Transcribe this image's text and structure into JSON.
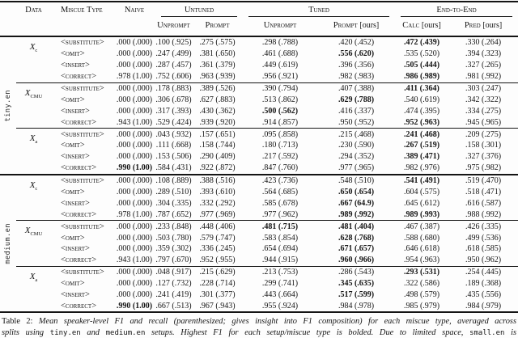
{
  "table": {
    "header": {
      "data": "Data",
      "miscue_type": "Miscue Type",
      "naive": "Naive",
      "col_groups": [
        {
          "label": "Untuned",
          "cols": [
            {
              "label": "Unprompt"
            },
            {
              "label": "Prompt",
              "suffix": ""
            }
          ]
        },
        {
          "label": "Tuned",
          "cols": [
            {
              "label": "Unprompt"
            },
            {
              "label": "Prompt",
              "suffix": "[ours]"
            }
          ]
        },
        {
          "label": "End-to-End",
          "cols": [
            {
              "label": "Calc",
              "suffix": "[ours]"
            },
            {
              "label": "Pred",
              "suffix": "[ours]"
            }
          ]
        }
      ]
    },
    "sections": [
      {
        "setup": "tiny.en",
        "groups": [
          {
            "data_label": {
              "base": "X",
              "sub": "c"
            },
            "rows": [
              {
                "miscue": "<SUBSTITUTE>",
                "cells": [
                  ".000 (.000)",
                  ".100 (.925)",
                  ".275 (.575)",
                  ".298 (.788)",
                  ".420 (.452)",
                  ".472 (.439)",
                  ".330 (.264)"
                ],
                "bold": [
                  5
                ]
              },
              {
                "miscue": "<OMIT>",
                "cells": [
                  ".000 (.000)",
                  ".247 (.499)",
                  ".381 (.650)",
                  ".461 (.688)",
                  ".556 (.620)",
                  ".535 (.520)",
                  ".394 (.323)"
                ],
                "bold": [
                  4
                ]
              },
              {
                "miscue": "<INSERT>",
                "cells": [
                  ".000 (.000)",
                  ".287 (.457)",
                  ".361 (.379)",
                  ".449 (.619)",
                  ".396 (.356)",
                  ".505 (.444)",
                  ".327 (.265)"
                ],
                "bold": [
                  5
                ]
              },
              {
                "miscue": "<CORRECT>",
                "cells": [
                  ".978 (1.00)",
                  ".752 (.606)",
                  ".963 (.939)",
                  ".956 (.921)",
                  ".982 (.983)",
                  ".986 (.989)",
                  ".981 (.992)"
                ],
                "bold": [
                  5
                ]
              }
            ]
          },
          {
            "data_label": {
              "base": "X",
              "sub": "CMU"
            },
            "rows": [
              {
                "miscue": "<SUBSTITUTE>",
                "cells": [
                  ".000 (.000)",
                  ".178 (.883)",
                  ".389 (.526)",
                  ".390 (.794)",
                  ".407 (.388)",
                  ".411 (.364)",
                  ".303 (.247)"
                ],
                "bold": [
                  5
                ]
              },
              {
                "miscue": "<OMIT>",
                "cells": [
                  ".000 (.000)",
                  ".306 (.678)",
                  ".627 (.883)",
                  ".513 (.862)",
                  ".629 (.788)",
                  ".540 (.619)",
                  ".342 (.322)"
                ],
                "bold": [
                  4
                ]
              },
              {
                "miscue": "<INSERT>",
                "cells": [
                  ".000 (.000)",
                  ".317 (.393)",
                  ".430 (.362)",
                  ".500 (.562)",
                  ".416 (.337)",
                  ".474 (.395)",
                  ".334 (.275)"
                ],
                "bold": [
                  3
                ]
              },
              {
                "miscue": "<CORRECT>",
                "cells": [
                  ".943 (1.00)",
                  ".529 (.424)",
                  ".939 (.920)",
                  ".914 (.857)",
                  ".950 (.952)",
                  ".952 (.963)",
                  ".945 (.965)"
                ],
                "bold": [
                  5
                ]
              }
            ]
          },
          {
            "data_label": {
              "base": "X",
              "sub": "a"
            },
            "rows": [
              {
                "miscue": "<SUBSTITUTE>",
                "cells": [
                  ".000 (.000)",
                  ".043 (.932)",
                  ".157 (.651)",
                  ".095 (.858)",
                  ".215 (.468)",
                  ".241 (.468)",
                  ".209 (.275)"
                ],
                "bold": [
                  5
                ]
              },
              {
                "miscue": "<OMIT>",
                "cells": [
                  ".000 (.000)",
                  ".111 (.668)",
                  ".158 (.744)",
                  ".180 (.713)",
                  ".230 (.590)",
                  ".267 (.519)",
                  ".158 (.301)"
                ],
                "bold": [
                  5
                ]
              },
              {
                "miscue": "<INSERT>",
                "cells": [
                  ".000 (.000)",
                  ".153 (.506)",
                  ".290 (.409)",
                  ".217 (.592)",
                  ".294 (.352)",
                  ".389 (.471)",
                  ".327 (.376)"
                ],
                "bold": [
                  5
                ]
              },
              {
                "miscue": "<CORRECT>",
                "cells": [
                  ".990 (1.00)",
                  ".584 (.431)",
                  ".922 (.872)",
                  ".847 (.760)",
                  ".977 (.965)",
                  ".982 (.976)",
                  ".975 (.982)"
                ],
                "bold": [
                  0
                ]
              }
            ]
          }
        ]
      },
      {
        "setup": "medium.en",
        "groups": [
          {
            "data_label": {
              "base": "X",
              "sub": "c"
            },
            "rows": [
              {
                "miscue": "<SUBSTITUTE>",
                "cells": [
                  ".000 (.000)",
                  ".108 (.889)",
                  ".388 (.516)",
                  ".423 (.736)",
                  ".548 (.510)",
                  ".541 (.491)",
                  ".519 (.470)"
                ],
                "bold": [
                  5
                ]
              },
              {
                "miscue": "<OMIT>",
                "cells": [
                  ".000 (.000)",
                  ".289 (.510)",
                  ".393 (.610)",
                  ".564 (.685)",
                  ".650 (.654)",
                  ".604 (.575)",
                  ".518 (.471)"
                ],
                "bold": [
                  4
                ]
              },
              {
                "miscue": "<INSERT>",
                "cells": [
                  ".000 (.000)",
                  ".304 (.335)",
                  ".332 (.292)",
                  ".585 (.678)",
                  ".667 (64.9)",
                  ".645 (.612)",
                  ".616 (.587)"
                ],
                "bold": [
                  4
                ]
              },
              {
                "miscue": "<CORRECT>",
                "cells": [
                  ".978 (1.00)",
                  ".787 (.652)",
                  ".977 (.969)",
                  ".977 (.962)",
                  ".989 (.992)",
                  ".989 (.993)",
                  ".988 (.992)"
                ],
                "bold": [
                  4,
                  5
                ]
              }
            ]
          },
          {
            "data_label": {
              "base": "X",
              "sub": "CMU"
            },
            "rows": [
              {
                "miscue": "<SUBSTITUTE>",
                "cells": [
                  ".000 (.000)",
                  ".233 (.848)",
                  ".448 (.406)",
                  ".481 (.715)",
                  ".481 (.404)",
                  ".467 (.387)",
                  ".426 (.335)"
                ],
                "bold": [
                  3,
                  4
                ]
              },
              {
                "miscue": "<OMIT>",
                "cells": [
                  ".000 (.000)",
                  ".503 (.780)",
                  ".579 (.747)",
                  ".583 (.854)",
                  ".628 (.768)",
                  ".588 (.680)",
                  ".499 (.536)"
                ],
                "bold": [
                  4
                ]
              },
              {
                "miscue": "<INSERT>",
                "cells": [
                  ".000 (.000)",
                  ".359 (.302)",
                  ".336 (.245)",
                  ".654 (.694)",
                  ".671 (.657)",
                  ".646 (.618)",
                  ".618 (.585)"
                ],
                "bold": [
                  4
                ]
              },
              {
                "miscue": "<CORRECT>",
                "cells": [
                  ".943 (1.00)",
                  ".797 (.670)",
                  ".952 (.955)",
                  ".944 (.915)",
                  ".960 (.966)",
                  ".954 (.963)",
                  ".950 (.962)"
                ],
                "bold": [
                  4
                ]
              }
            ]
          },
          {
            "data_label": {
              "base": "X",
              "sub": "a"
            },
            "rows": [
              {
                "miscue": "<SUBSTITUTE>",
                "cells": [
                  ".000 (.000)",
                  ".048 (.917)",
                  ".215 (.629)",
                  ".213 (.753)",
                  ".286 (.543)",
                  ".293 (.531)",
                  ".254 (.445)"
                ],
                "bold": [
                  5
                ]
              },
              {
                "miscue": "<OMIT>",
                "cells": [
                  ".000 (.000)",
                  ".127 (.732)",
                  ".228 (.714)",
                  ".299 (.741)",
                  ".345 (.635)",
                  ".322 (.586)",
                  ".189 (.368)"
                ],
                "bold": [
                  4
                ]
              },
              {
                "miscue": "<INSERT>",
                "cells": [
                  ".000 (.000)",
                  ".241 (.419)",
                  ".301 (.377)",
                  ".443 (.664)",
                  ".517 (.599)",
                  ".498 (.579)",
                  ".435 (.556)"
                ],
                "bold": [
                  4
                ]
              },
              {
                "miscue": "<CORRECT>",
                "cells": [
                  ".990 (1.00)",
                  ".667 (.513)",
                  ".967 (.943)",
                  ".955 (.924)",
                  ".984 (.978)",
                  ".985 (.979)",
                  ".984 (.979)"
                ],
                "bold": [
                  0
                ]
              }
            ]
          }
        ]
      }
    ]
  },
  "caption": {
    "label": "Table 2:",
    "line1": " Mean speaker-level F1 and recall (parenthesized; gives insight into F1 composition) for each miscue type, averaged across",
    "line2": [
      {
        "t": "splits using "
      },
      {
        "t": "tiny.en",
        "mono": true
      },
      {
        "t": " and "
      },
      {
        "t": "medium.en",
        "mono": true
      },
      {
        "t": " setups. Highest F1 for each setup/miscue type is bolded. Due to limited space, "
      },
      {
        "t": "small.en",
        "mono": true
      },
      {
        "t": " is"
      }
    ]
  }
}
